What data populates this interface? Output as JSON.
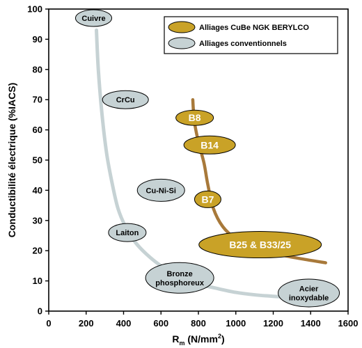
{
  "chart_data": {
    "type": "scatter",
    "xlabel_main": "R",
    "xlabel_sub": "m",
    "xlabel_unit": " (N/mm",
    "xlabel_sup": "2",
    "xlabel_close": ")",
    "ylabel": "Conductibilité électrique (%IACS)",
    "xlim": [
      0,
      1600
    ],
    "ylim": [
      0,
      100
    ],
    "x_ticks": [
      0,
      200,
      400,
      600,
      800,
      1000,
      1200,
      1400,
      1600
    ],
    "y_ticks": [
      0,
      10,
      20,
      30,
      40,
      50,
      60,
      70,
      80,
      90,
      100
    ],
    "legend_position": "top-right",
    "colors": {
      "gold": "#C9A227",
      "gold_curve": "#A8793A",
      "grey": "#C6D2D4",
      "grey_curve": "#C6D2D4"
    },
    "series": [
      {
        "name": "Alliages CuBe NGK BERYLCO",
        "points": [
          {
            "label": "B8",
            "x": 780,
            "y": 64
          },
          {
            "label": "B14",
            "x": 860,
            "y": 55
          },
          {
            "label": "B7",
            "x": 850,
            "y": 37
          },
          {
            "label": "B25 & B33/25",
            "x": 1130,
            "y": 22
          }
        ],
        "curve": [
          [
            770,
            70
          ],
          [
            778,
            63
          ],
          [
            800,
            56
          ],
          [
            830,
            49
          ],
          [
            850,
            42
          ],
          [
            880,
            34
          ],
          [
            930,
            28
          ],
          [
            1000,
            24
          ],
          [
            1100,
            21
          ],
          [
            1250,
            18.5
          ],
          [
            1380,
            17
          ],
          [
            1480,
            16
          ]
        ]
      },
      {
        "name": "Alliages conventionnels",
        "points": [
          {
            "label": "Cuivre",
            "x": 240,
            "y": 97
          },
          {
            "label": "CrCu",
            "x": 410,
            "y": 70
          },
          {
            "label": "Cu-Ni-Si",
            "x": 600,
            "y": 40
          },
          {
            "label": "Laiton",
            "x": 420,
            "y": 26
          },
          {
            "label": "Bronze phosphoreux",
            "x": 700,
            "y": 11
          },
          {
            "label": "Acier inoxydable",
            "x": 1390,
            "y": 6
          }
        ],
        "curve": [
          [
            255,
            93
          ],
          [
            265,
            80
          ],
          [
            285,
            65
          ],
          [
            310,
            52
          ],
          [
            340,
            42
          ],
          [
            370,
            34
          ],
          [
            410,
            28
          ],
          [
            460,
            23
          ],
          [
            520,
            19
          ],
          [
            600,
            15
          ],
          [
            700,
            11.5
          ],
          [
            800,
            9
          ],
          [
            900,
            7.5
          ],
          [
            1000,
            6.2
          ],
          [
            1100,
            5.4
          ],
          [
            1200,
            4.9
          ],
          [
            1300,
            4.6
          ],
          [
            1400,
            4.5
          ]
        ]
      }
    ]
  }
}
